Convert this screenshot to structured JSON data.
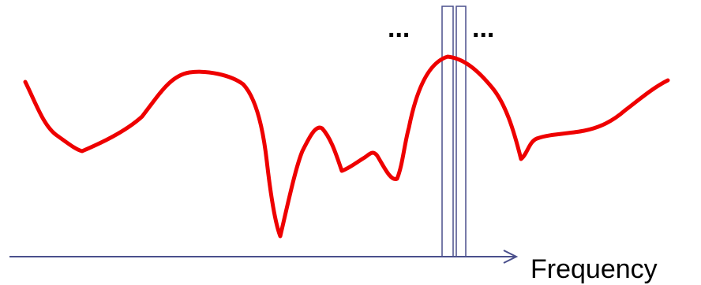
{
  "axis": {
    "label": "Frequency",
    "color": "#4a4f8c"
  },
  "spectrum": {
    "color": "#ee0000"
  },
  "bins": {
    "color": "#4a4f8c",
    "left_ellipsis": "...",
    "right_ellipsis": "..."
  }
}
